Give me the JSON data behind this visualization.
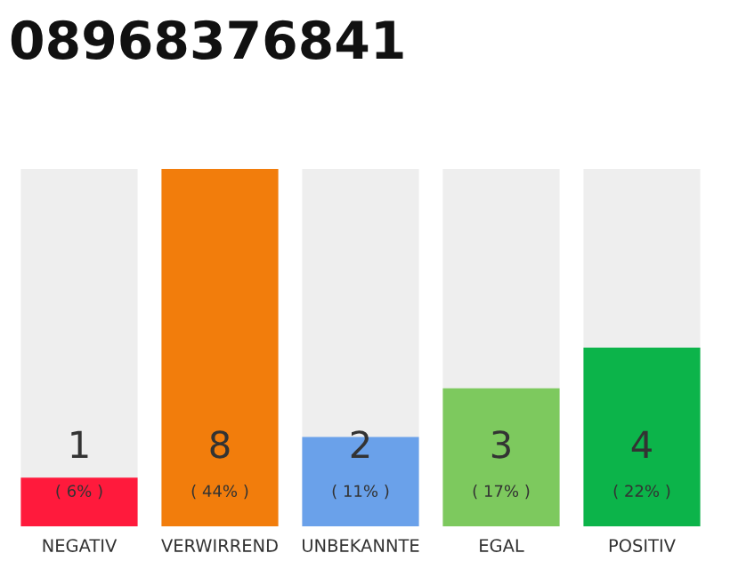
{
  "chart_data": {
    "type": "bar",
    "title": "08968376841",
    "categories": [
      "NEGATIV",
      "VERWIRREND",
      "UNBEKANNTE",
      "EGAL",
      "POSITIV"
    ],
    "values": [
      6,
      44,
      11,
      17,
      22
    ],
    "colors": [
      "#ff1a3c",
      "#f27d0c",
      "#6aa1ea",
      "#7dc95e",
      "#0cb44a"
    ],
    "ylim": [
      0,
      44
    ],
    "value_labels": [
      "1\n( 6% )",
      "8\n( 44% )",
      "2\n( 11% )",
      "3\n( 17% )",
      "4\n( 22% )"
    ],
    "grid": false,
    "legend": false
  }
}
